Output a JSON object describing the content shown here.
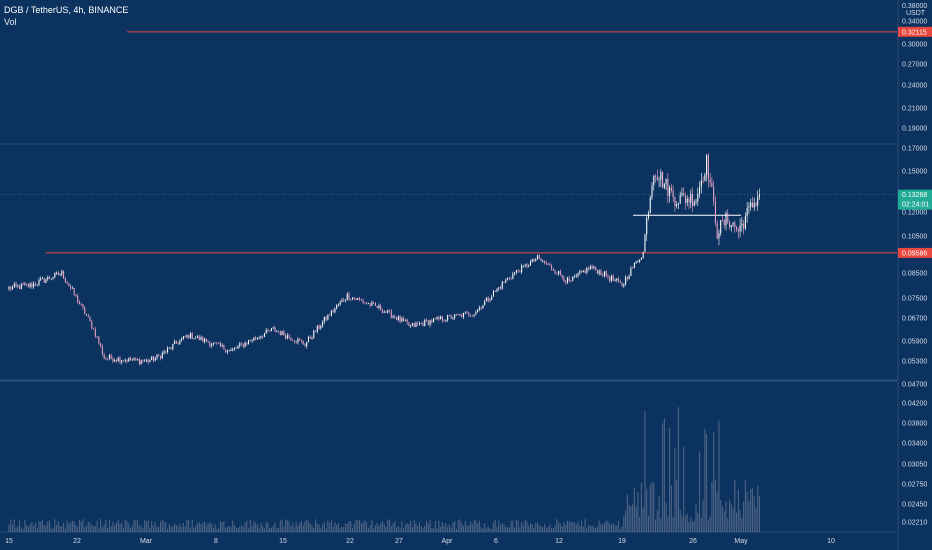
{
  "header": {
    "symbol": "DGB / TetherUS, 4h, BINANCE",
    "volume_label": "Vol"
  },
  "colors": {
    "background": "#0c3360",
    "up_candle": "#ffffff",
    "down_candle": "#f0a3c6",
    "resistance_line": "#e8473f",
    "current_price": "#22ab94",
    "volume_bars": "#5d6f8c"
  },
  "chart_data": {
    "type": "candlestick",
    "quote_currency": "USDT",
    "y_ticks": [
      "0.38000",
      "0.34000",
      "0.30000",
      "0.27000",
      "0.24000",
      "0.21000",
      "0.19000",
      "0.17000",
      "0.15000",
      "0.12000",
      "0.10500",
      "0.08500",
      "0.07500",
      "0.06700",
      "0.05900",
      "0.05300",
      "0.04700"
    ],
    "volume_ticks": [
      "0.04200",
      "0.03800",
      "0.03400",
      "0.03050",
      "0.02750",
      "0.02450",
      "0.02210"
    ],
    "x_ticks": [
      "15",
      "22",
      "Mar",
      "8",
      "15",
      "22",
      "27",
      "Apr",
      "6",
      "12",
      "19",
      "26",
      "May",
      "10"
    ],
    "horizontal_levels": [
      {
        "label": "0.32115",
        "value": 0.32115,
        "kind": "resistance"
      },
      {
        "label": "0.09586",
        "value": 0.09586,
        "kind": "support"
      },
      {
        "value": 0.118,
        "kind": "range-line"
      }
    ],
    "current_price": {
      "price": "0.13268",
      "countdown": "02:24:01",
      "value": 0.13268
    },
    "price_path_keypoints": [
      {
        "date": "2021-02-15",
        "close": 0.079
      },
      {
        "date": "2021-02-17",
        "close": 0.08
      },
      {
        "date": "2021-02-20",
        "close": 0.085
      },
      {
        "date": "2021-02-23",
        "close": 0.063
      },
      {
        "date": "2021-02-24",
        "close": 0.054
      },
      {
        "date": "2021-02-28",
        "close": 0.053
      },
      {
        "date": "2021-03-01",
        "close": 0.054
      },
      {
        "date": "2021-03-04",
        "close": 0.061
      },
      {
        "date": "2021-03-08",
        "close": 0.056
      },
      {
        "date": "2021-03-12",
        "close": 0.063
      },
      {
        "date": "2021-03-15",
        "close": 0.058
      },
      {
        "date": "2021-03-19",
        "close": 0.076
      },
      {
        "date": "2021-03-22",
        "close": 0.071
      },
      {
        "date": "2021-03-25",
        "close": 0.064
      },
      {
        "date": "2021-03-27",
        "close": 0.066
      },
      {
        "date": "2021-03-31",
        "close": 0.069
      },
      {
        "date": "2021-04-03",
        "close": 0.082
      },
      {
        "date": "2021-04-06",
        "close": 0.093
      },
      {
        "date": "2021-04-09",
        "close": 0.081
      },
      {
        "date": "2021-04-11",
        "close": 0.088
      },
      {
        "date": "2021-04-14",
        "close": 0.08
      },
      {
        "date": "2021-04-16",
        "close": 0.096
      },
      {
        "date": "2021-04-17",
        "close": 0.152
      },
      {
        "date": "2021-04-19",
        "close": 0.13
      },
      {
        "date": "2021-04-21",
        "close": 0.13
      },
      {
        "date": "2021-04-22",
        "close": 0.158
      },
      {
        "date": "2021-04-23",
        "close": 0.108
      },
      {
        "date": "2021-04-24",
        "close": 0.116
      },
      {
        "date": "2021-04-25",
        "close": 0.108
      },
      {
        "date": "2021-04-26",
        "close": 0.121
      },
      {
        "date": "2021-04-27",
        "close": 0.1327
      }
    ]
  }
}
